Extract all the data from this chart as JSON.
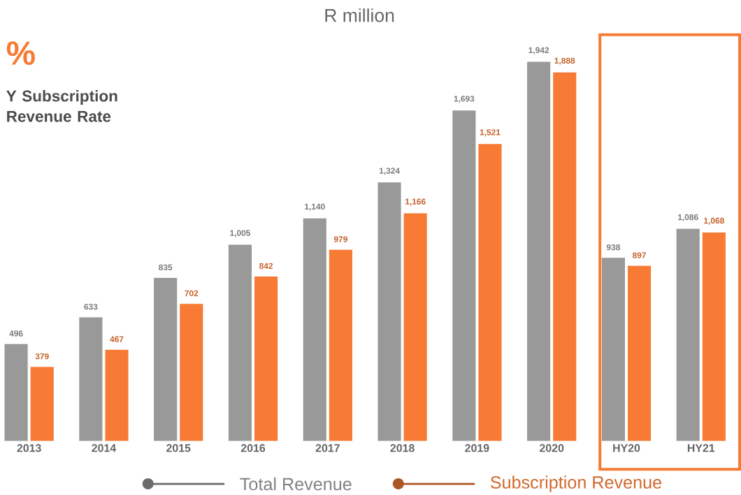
{
  "chart_data": {
    "type": "bar",
    "title": "R million",
    "annotations": [
      "%",
      "Y Subscription Revenue Rate"
    ],
    "categories": [
      "2013",
      "2014",
      "2015",
      "2016",
      "2017",
      "2018",
      "2019",
      "2020",
      "HY20",
      "HY21"
    ],
    "series": [
      {
        "name": "Total Revenue",
        "color": "#999999",
        "values": [
          496,
          633,
          835,
          1005,
          1140,
          1324,
          1693,
          1942,
          938,
          1086
        ],
        "value_labels": [
          "496",
          "633",
          "835",
          "1,005",
          "1,140",
          "1,324",
          "1,693",
          "1,942",
          "938",
          "1,086"
        ]
      },
      {
        "name": "Subscription Revenue",
        "color": "#f77b35",
        "values": [
          379,
          467,
          702,
          842,
          979,
          1166,
          1521,
          1888,
          897,
          1068
        ],
        "value_labels": [
          "379",
          "467",
          "702",
          "842",
          "979",
          "1,166",
          "1,521",
          "1,888",
          "897",
          "1,068"
        ]
      }
    ],
    "legend": "bottom"
  }
}
